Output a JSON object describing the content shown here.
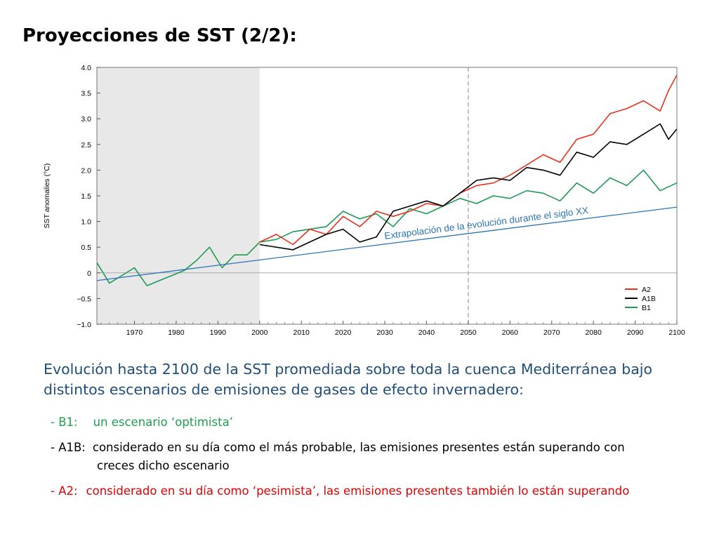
{
  "slide": {
    "title": "Proyecciones de SST (2/2):",
    "description": "Evolución hasta 2100 de la SST promediada sobre toda la cuenca Mediterránea bajo distintos escenarios de emisiones de gases de efecto invernadero:",
    "bullets": [
      {
        "prefix": "- B1:",
        "text": "un escenario ‘optimista’",
        "color": "#1e9e4e"
      },
      {
        "prefix": "- A1B:",
        "text": "considerado en su día como el más probable, las emisiones presentes están superando con",
        "text2": "creces dicho escenario",
        "color": "#000000"
      },
      {
        "prefix": "- A2:",
        "text": "considerado en su día como ‘pesimista’, las emisiones presentes también lo están superando",
        "color": "#e00000"
      }
    ]
  },
  "chart_data": {
    "type": "line",
    "ylabel": "SST anomalies (°C)",
    "xlim": [
      1961,
      2100
    ],
    "ylim": [
      -1.0,
      4.0
    ],
    "x_ticks": [
      1970,
      1980,
      1990,
      2000,
      2010,
      2020,
      2030,
      2040,
      2050,
      2060,
      2070,
      2080,
      2090,
      2100
    ],
    "y_ticks": [
      {
        "value": 4.0,
        "label": "4.0"
      },
      {
        "value": 3.5,
        "label": "3.5"
      },
      {
        "value": 3.0,
        "label": "3.0"
      },
      {
        "value": 2.5,
        "label": "2.5"
      },
      {
        "value": 2.0,
        "label": "2.0"
      },
      {
        "value": 1.5,
        "label": "1.5"
      },
      {
        "value": 1.0,
        "label": "1.0"
      },
      {
        "value": 0.5,
        "label": "0.5"
      },
      {
        "value": 0,
        "label": "0"
      },
      {
        "value": -0.5,
        "label": "−0.5"
      },
      {
        "value": -1.0,
        "label": "−1.0"
      }
    ],
    "shaded_period": [
      1961,
      2000
    ],
    "vertical_dashed_line": 2050,
    "zero_line": 0,
    "trend_line": {
      "label": "Extrapolación de la evolución durante el siglo XX",
      "points": [
        [
          1961,
          -0.15
        ],
        [
          2100,
          1.28
        ]
      ],
      "color": "#2e75b6"
    },
    "legend_position": "lower-right",
    "series": [
      {
        "name": "A2",
        "color": "#e8321e",
        "x": [
          2000,
          2004,
          2008,
          2012,
          2016,
          2020,
          2024,
          2028,
          2032,
          2036,
          2040,
          2044,
          2048,
          2052,
          2056,
          2060,
          2064,
          2068,
          2072,
          2076,
          2080,
          2084,
          2088,
          2092,
          2096,
          2098,
          2100
        ],
        "y": [
          0.6,
          0.75,
          0.55,
          0.85,
          0.75,
          1.1,
          0.9,
          1.2,
          1.1,
          1.2,
          1.35,
          1.3,
          1.55,
          1.7,
          1.75,
          1.9,
          2.1,
          2.3,
          2.15,
          2.6,
          2.7,
          3.1,
          3.2,
          3.35,
          3.15,
          3.55,
          3.85
        ]
      },
      {
        "name": "A1B",
        "color": "#000000",
        "x": [
          2000,
          2004,
          2008,
          2012,
          2016,
          2020,
          2024,
          2028,
          2032,
          2036,
          2040,
          2044,
          2048,
          2052,
          2056,
          2060,
          2064,
          2068,
          2072,
          2076,
          2080,
          2084,
          2088,
          2092,
          2096,
          2098,
          2100
        ],
        "y": [
          0.55,
          0.5,
          0.45,
          0.6,
          0.75,
          0.85,
          0.6,
          0.7,
          1.2,
          1.3,
          1.4,
          1.3,
          1.55,
          1.8,
          1.85,
          1.8,
          2.05,
          2.0,
          1.9,
          2.35,
          2.25,
          2.55,
          2.5,
          2.7,
          2.9,
          2.6,
          2.8
        ]
      },
      {
        "name": "B1",
        "color": "#1e9a55",
        "x": [
          1961,
          1964,
          1967,
          1970,
          1973,
          1976,
          1979,
          1982,
          1985,
          1988,
          1991,
          1994,
          1997,
          2000,
          2004,
          2008,
          2012,
          2016,
          2020,
          2024,
          2028,
          2032,
          2036,
          2040,
          2044,
          2048,
          2052,
          2056,
          2060,
          2064,
          2068,
          2072,
          2076,
          2080,
          2084,
          2088,
          2092,
          2096,
          2100
        ],
        "y": [
          0.2,
          -0.2,
          -0.05,
          0.1,
          -0.25,
          -0.15,
          -0.05,
          0.05,
          0.25,
          0.5,
          0.1,
          0.35,
          0.35,
          0.6,
          0.65,
          0.8,
          0.85,
          0.9,
          1.2,
          1.05,
          1.15,
          0.9,
          1.25,
          1.15,
          1.3,
          1.45,
          1.35,
          1.5,
          1.45,
          1.6,
          1.55,
          1.4,
          1.75,
          1.55,
          1.85,
          1.7,
          2.0,
          1.6,
          1.75
        ]
      }
    ]
  }
}
